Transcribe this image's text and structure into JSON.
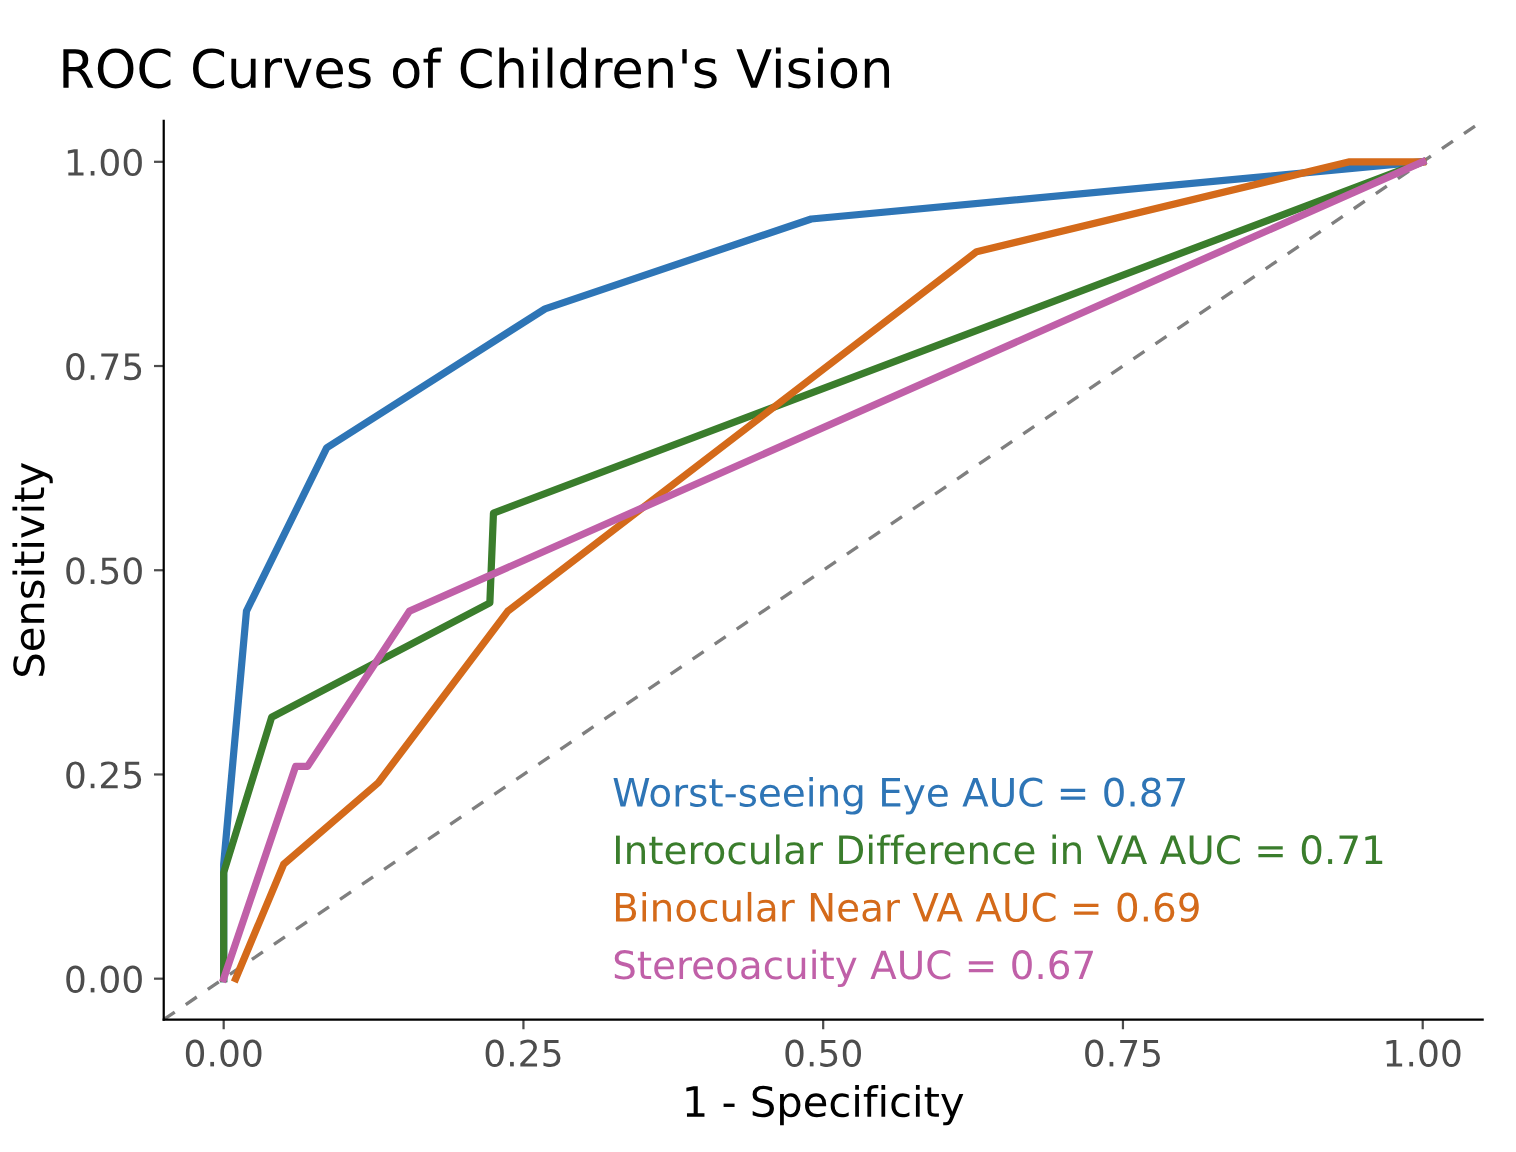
{
  "chart_data": {
    "type": "line",
    "title": "ROC Curves of Children's Vision",
    "xlabel": "1 - Specificity",
    "ylabel": "Sensitivity",
    "xlim": [
      -0.05,
      1.05
    ],
    "ylim": [
      -0.05,
      1.05
    ],
    "xticks": [
      {
        "value": 0,
        "label": "0.00"
      },
      {
        "value": 0.25,
        "label": "0.25"
      },
      {
        "value": 0.5,
        "label": "0.50"
      },
      {
        "value": 0.75,
        "label": "0.75"
      },
      {
        "value": 1,
        "label": "1.00"
      }
    ],
    "yticks": [
      {
        "value": 0,
        "label": "0.00"
      },
      {
        "value": 0.25,
        "label": "0.25"
      },
      {
        "value": 0.5,
        "label": "0.50"
      },
      {
        "value": 0.75,
        "label": "0.75"
      },
      {
        "value": 1,
        "label": "1.00"
      }
    ],
    "grid": false,
    "legend": "bottom right",
    "marker": "none",
    "line_style": "solid",
    "series": [
      {
        "x": [
          -0.05,
          1.05
        ],
        "values": [
          -0.05,
          1.05
        ],
        "color": "#7f7f7f",
        "line_style": "dashed"
      },
      {
        "name": "Worst-seeing Eye AUC = 0.87",
        "color": "#2e75b6",
        "x": [
          0,
          0,
          0.019,
          0.086,
          0.268,
          0.49,
          1
        ],
        "values": [
          0,
          0.14,
          0.45,
          0.65,
          0.82,
          0.93,
          1
        ]
      },
      {
        "name": "Interocular Difference in VA AUC = 0.71",
        "color": "#3a7d2c",
        "x": [
          0,
          0,
          0.04,
          0.222,
          0.225,
          1
        ],
        "values": [
          0,
          0.13,
          0.32,
          0.46,
          0.57,
          1
        ]
      },
      {
        "name": "Binocular Near VA AUC = 0.69",
        "color": "#d46a1a",
        "x": [
          0.01,
          0.05,
          0.129,
          0.237,
          0.628,
          0.939,
          1
        ],
        "values": [
          0,
          0.14,
          0.24,
          0.45,
          0.89,
          1,
          1
        ]
      },
      {
        "name": "Stereoacuity AUC = 0.67",
        "color": "#c060a8",
        "x": [
          0,
          0.06,
          0.07,
          0.155,
          1
        ],
        "values": [
          0,
          0.26,
          0.26,
          0.45,
          1
        ]
      }
    ]
  }
}
